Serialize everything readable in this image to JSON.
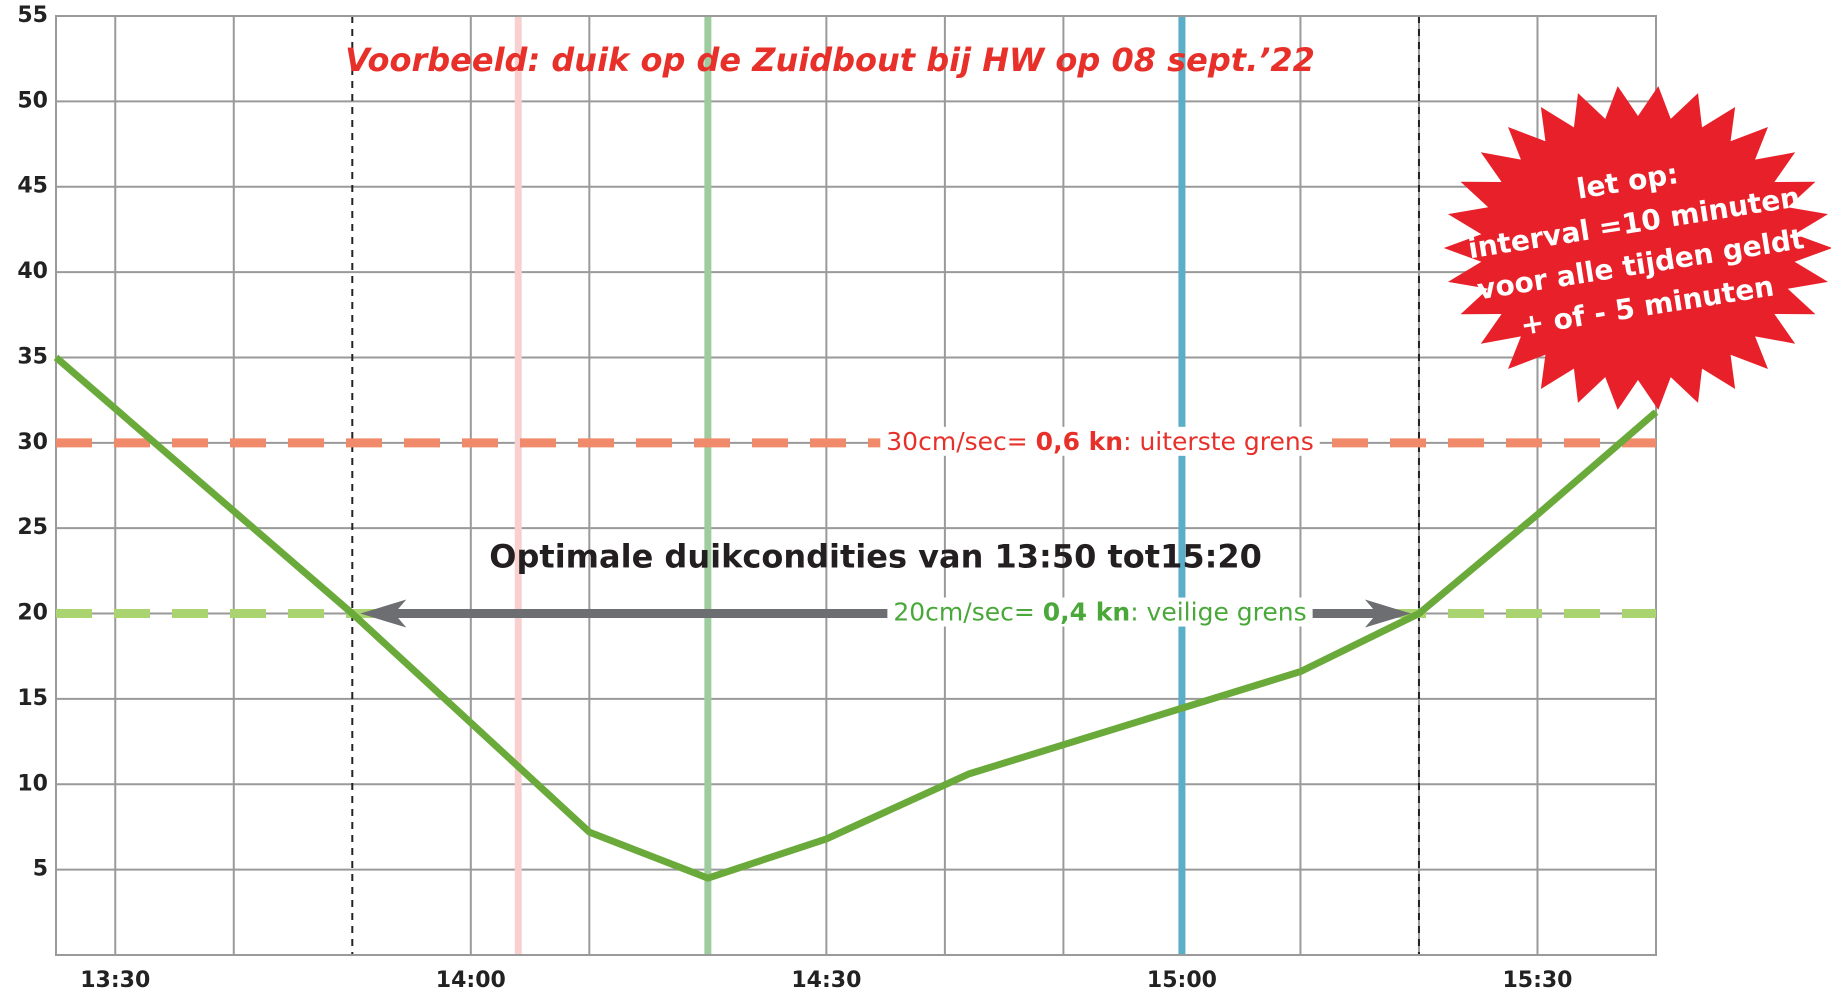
{
  "chart_data": {
    "type": "line",
    "title": "Voorbeeld: duik op de Zuidbout bij HW op 08 sept.’22",
    "xlim": [
      805,
      940
    ],
    "ylim": [
      0,
      55
    ],
    "xticks": [
      {
        "value": 810,
        "label": "13:30"
      },
      {
        "value": 840,
        "label": "14:00"
      },
      {
        "value": 870,
        "label": "14:30"
      },
      {
        "value": 900,
        "label": "15:00"
      },
      {
        "value": 930,
        "label": "15:30"
      }
    ],
    "xminor": [
      820,
      850,
      860,
      880,
      890,
      910,
      920
    ],
    "yticks": [
      5,
      10,
      15,
      20,
      25,
      30,
      35,
      40,
      45,
      50,
      55
    ],
    "grid": true,
    "series": [
      {
        "color": "#6aaa3a",
        "x": [
          805,
          830,
          850,
          860,
          870,
          882,
          910,
          920,
          930,
          940
        ],
        "values": [
          35,
          20,
          7.2,
          4.5,
          6.8,
          10.6,
          16.6,
          20,
          25.8,
          31.8
        ]
      }
    ],
    "reference_lines": [
      {
        "value": 30,
        "color": "#f08a6a",
        "label_color": "#e8302a",
        "label_parts": [
          "30cm/sec= ",
          "0,6 kn",
          ": uiterste grens"
        ]
      },
      {
        "value": 20,
        "color": "#a9d46f",
        "label_color": "#4aa83a",
        "label_parts": [
          "20cm/sec= ",
          "0,4 kn",
          ": veilige grens"
        ]
      }
    ],
    "vlines": [
      {
        "x": 830,
        "color": "#222222",
        "style": "dashed"
      },
      {
        "x": 844,
        "color": "#f9d0d0",
        "style": "solid"
      },
      {
        "x": 860,
        "color": "#9fcc9f",
        "style": "solid"
      },
      {
        "x": 900,
        "color": "#5aaec8",
        "style": "solid"
      },
      {
        "x": 920,
        "color": "#222222",
        "style": "dashed"
      }
    ],
    "optimal_label": "Optimale duikcondities van 13:50 tot15:20",
    "optimal_range": [
      830,
      920
    ],
    "note_lines": [
      "let op:",
      "interval =10 minuten",
      "voor alle tijden geldt",
      "+ of - 5 minuten"
    ]
  }
}
